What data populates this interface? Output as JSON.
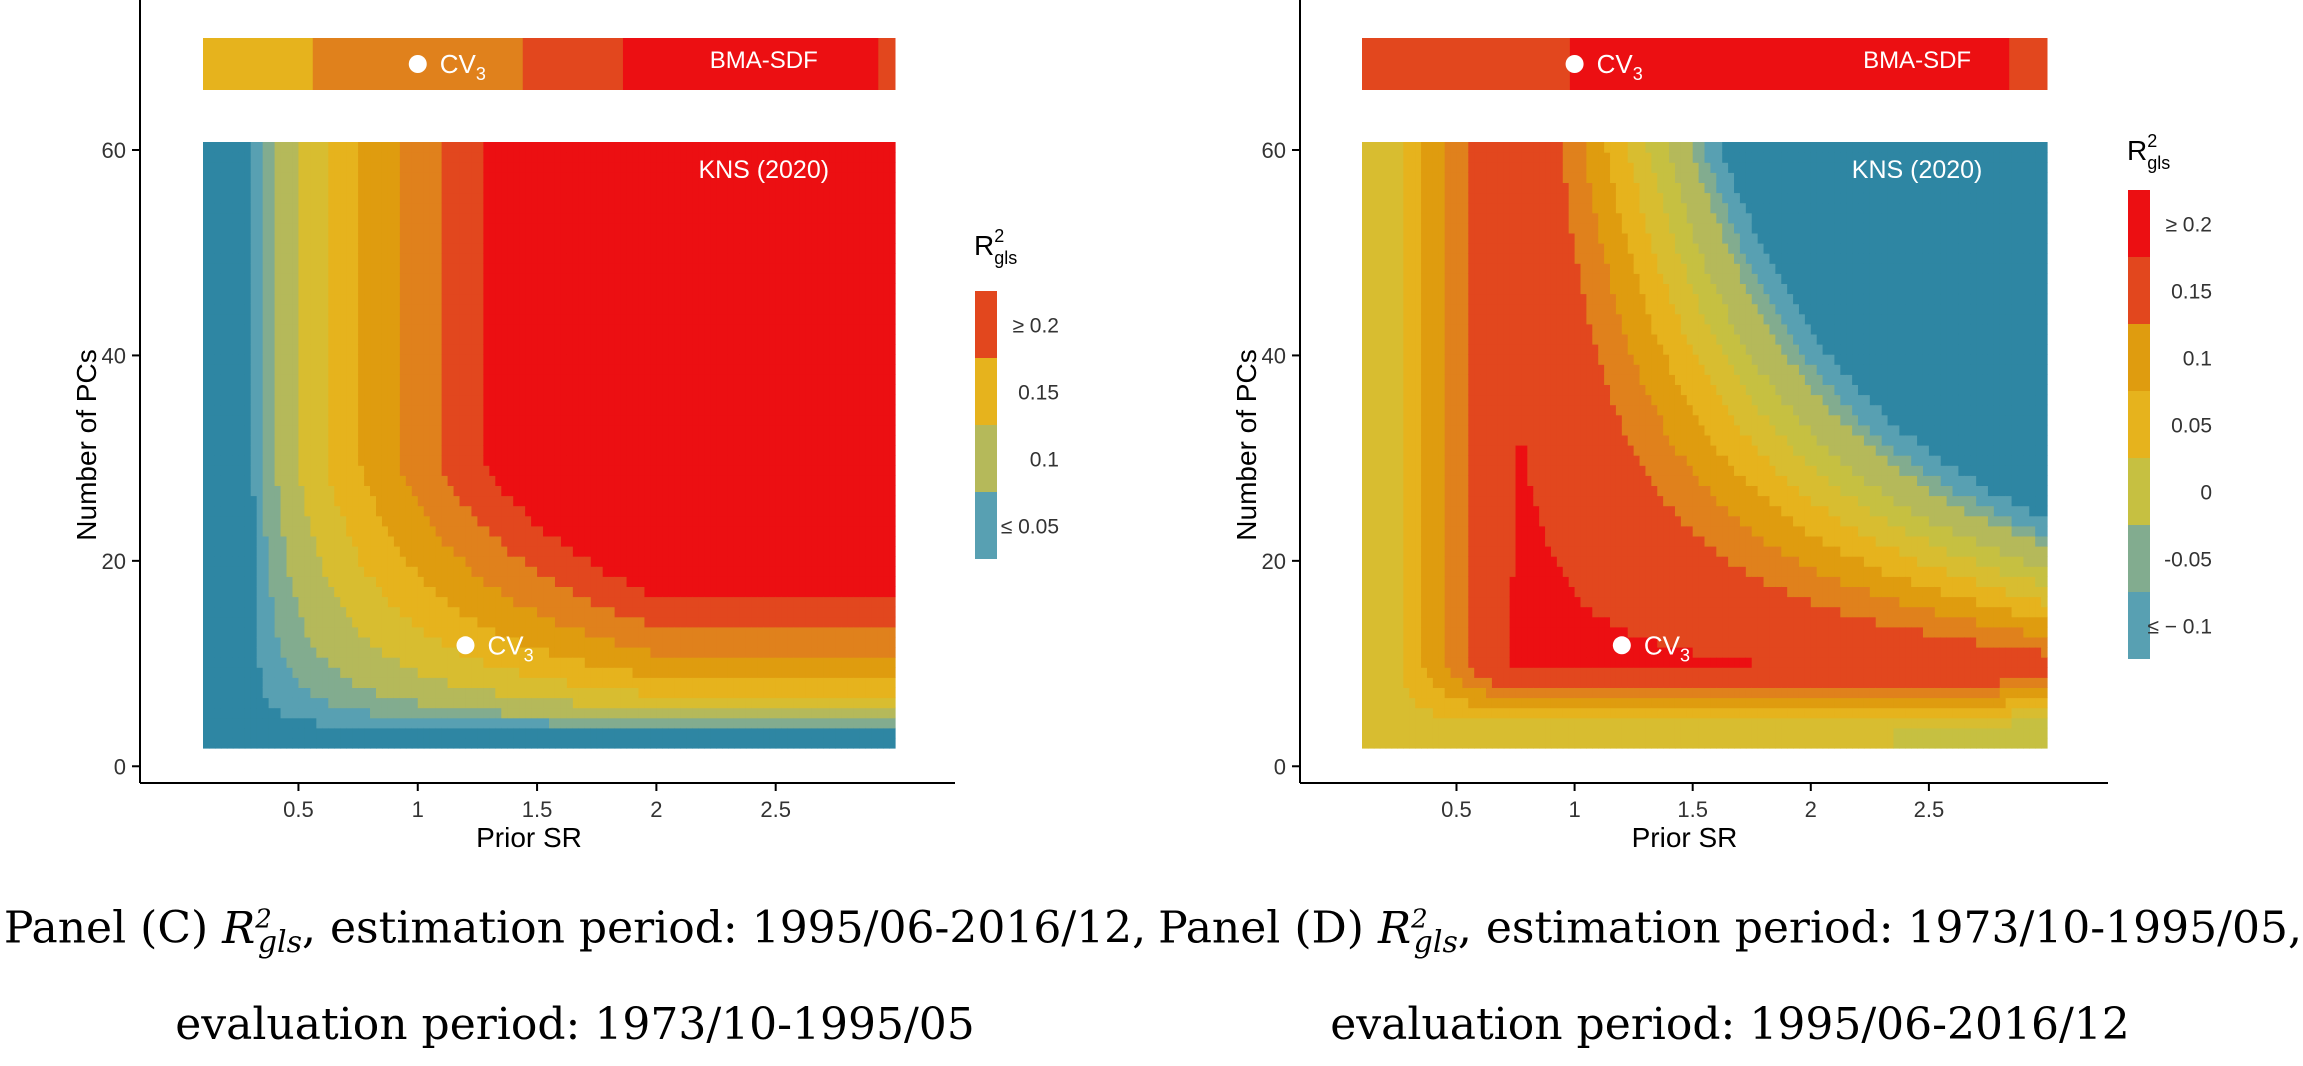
{
  "colors": {
    "palette": [
      "#2e86a3",
      "#58a0b2",
      "#82ac8f",
      "#b5b95a",
      "#d8bd30",
      "#e6b31d",
      "#df9c0f",
      "#e0811c",
      "#e2471e",
      "#ec0f12"
    ],
    "axis": "#000000",
    "annotation_text": "#ffffff"
  },
  "chart_data": [
    {
      "type": "heatmap",
      "panel": "C",
      "xlabel": "Prior SR",
      "ylabel": "Number of PCs",
      "x_ticks": [
        "0.5",
        "1",
        "1.5",
        "2",
        "2.5"
      ],
      "y_ticks": [
        "0",
        "20",
        "40",
        "60"
      ],
      "xlim": [
        0.1,
        3.0
      ],
      "ylim": [
        1,
        60
      ],
      "grid": false,
      "legend": {
        "title": "R",
        "title_sub": "gls",
        "title_sup": "2",
        "placement": "right",
        "entries": [
          {
            "label": "≥ 0.2",
            "color": "#e2471e"
          },
          {
            "label": "0.15",
            "color": "#e6b31d"
          },
          {
            "label": "0.1",
            "color": "#b5b95a"
          },
          {
            "label": "≤ 0.05",
            "color": "#58a0b2"
          }
        ]
      },
      "contour_bands": [
        0.02,
        0.035,
        0.05,
        0.07,
        0.09,
        0.11,
        0.13,
        0.15,
        0.17,
        0.19,
        0.21
      ],
      "top_strip": {
        "segments": [
          {
            "x_from": 0.1,
            "x_to": 0.56,
            "value": 0.1
          },
          {
            "x_from": 0.56,
            "x_to": 1.44,
            "value": 0.14
          },
          {
            "x_from": 1.44,
            "x_to": 1.86,
            "value": 0.16
          },
          {
            "x_from": 1.86,
            "x_to": 2.93,
            "value": 0.18
          },
          {
            "x_from": 2.93,
            "x_to": 3.0,
            "value": 0.15
          }
        ],
        "label": "BMA-SDF"
      },
      "markers": [
        {
          "label": "CV",
          "sub": "3",
          "x": 1.2,
          "y": 11,
          "location": "grid"
        },
        {
          "label": "CV",
          "sub": "3",
          "x": 1.0,
          "location": "strip"
        }
      ],
      "region_label": "KNS (2020)"
    },
    {
      "type": "heatmap",
      "panel": "D",
      "xlabel": "Prior SR",
      "ylabel": "Number of PCs",
      "x_ticks": [
        "0.5",
        "1",
        "1.5",
        "2",
        "2.5"
      ],
      "y_ticks": [
        "0",
        "20",
        "40",
        "60"
      ],
      "xlim": [
        0.1,
        3.0
      ],
      "ylim": [
        1,
        60
      ],
      "grid": false,
      "legend": {
        "title": "R",
        "title_sub": "gls",
        "title_sup": "2",
        "placement": "right",
        "entries": [
          {
            "label": "≥ 0.2",
            "color": "#ec0f12"
          },
          {
            "label": "0.15",
            "color": "#e2471e"
          },
          {
            "label": "0.1",
            "color": "#df9c0f"
          },
          {
            "label": "0.05",
            "color": "#e6b31d"
          },
          {
            "label": "0",
            "color": "#c6c041"
          },
          {
            "label": "-0.05",
            "color": "#82ac8f"
          },
          {
            "label": "≤ − 0.1",
            "color": "#58a0b2"
          }
        ]
      },
      "contour_bands": [
        -0.12,
        -0.09,
        -0.07,
        -0.03,
        0.0,
        0.03,
        0.06,
        0.09,
        0.12,
        0.15,
        0.18
      ],
      "top_strip": {
        "segments": [
          {
            "x_from": 0.1,
            "x_to": 0.22,
            "value": 0.12
          },
          {
            "x_from": 0.22,
            "x_to": 0.98,
            "value": 0.16
          },
          {
            "x_from": 0.98,
            "x_to": 2.84,
            "value": 0.21
          },
          {
            "x_from": 2.84,
            "x_to": 3.0,
            "value": 0.16
          }
        ],
        "label": "BMA-SDF"
      },
      "markers": [
        {
          "label": "CV",
          "sub": "3",
          "x": 1.2,
          "y": 11,
          "location": "grid"
        },
        {
          "label": "CV",
          "sub": "3",
          "x": 1.0,
          "location": "strip"
        }
      ],
      "region_label": "KNS (2020)"
    }
  ],
  "captions": [
    {
      "prefix": "Panel (C)",
      "math_base": "R",
      "math_sup": "2",
      "math_sub": "gls",
      "line1_rest": ", estimation period: 1995/06-2016/12,",
      "line2": "evaluation period: 1973/10-1995/05"
    },
    {
      "prefix": "Panel (D)",
      "math_base": "R",
      "math_sup": "2",
      "math_sub": "gls",
      "line1_rest": ", estimation period: 1973/10-1995/05,",
      "line2": "evaluation period: 1995/06-2016/12"
    }
  ]
}
